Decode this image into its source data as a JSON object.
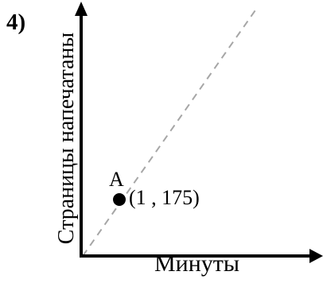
{
  "problem": {
    "number": "4)"
  },
  "axes": {
    "x_label": "Минуты",
    "y_label": "Страницы напечатаны"
  },
  "point": {
    "name": "A",
    "coords": "(1 , 175)"
  },
  "colors": {
    "axis": "#000000",
    "dashed_line": "#a6a6a6",
    "point": "#000000",
    "background": "#ffffff"
  }
}
